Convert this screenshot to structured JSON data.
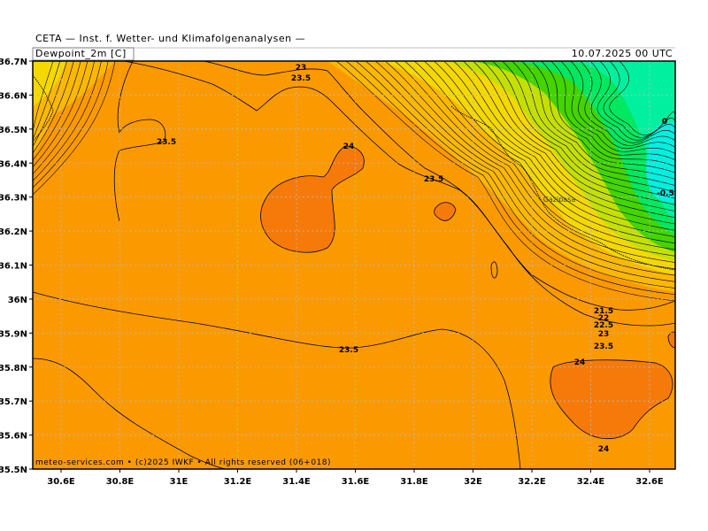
{
  "header": {
    "org": "CETA — Inst. f. Wetter- und Klimafolgenanalysen —",
    "variable": "Dewpoint_2m [C]",
    "datetime": "10.07.2025 00 UTC"
  },
  "footer": {
    "credit": "meteo-services.com • (c)2025 IWKF • All rights reserved (06+018)"
  },
  "axes": {
    "lat_labels": [
      "36.7N",
      "36.6N",
      "36.5N",
      "36.4N",
      "36.3N",
      "36.2N",
      "36.1N",
      "36N",
      "35.9N",
      "35.8N",
      "35.7N",
      "35.6N",
      "35.5N"
    ],
    "lon_labels": [
      "30.6E",
      "30.8E",
      "31E",
      "31.2E",
      "31.4E",
      "31.6E",
      "31.8E",
      "32E",
      "32.2E",
      "32.4E",
      "32.6E"
    ]
  },
  "contour_labels": [
    {
      "text": "23"
    },
    {
      "text": "23.5"
    },
    {
      "text": "23.5"
    },
    {
      "text": "24"
    },
    {
      "text": "23.5"
    },
    {
      "text": "23.5"
    },
    {
      "text": "0"
    },
    {
      "text": "-0.5"
    },
    {
      "text": "21.5"
    },
    {
      "text": "22"
    },
    {
      "text": "22.5"
    },
    {
      "text": "23"
    },
    {
      "text": "23.5"
    },
    {
      "text": "24"
    },
    {
      "text": "24"
    }
  ],
  "places": [
    {
      "name": "Gazipasa"
    }
  ],
  "colors": {
    "base": "#fb9a00",
    "warm": "#f67a0a",
    "yellow_orange": "#fcb800",
    "yellow": "#f4d800",
    "yellow_green": "#c4e000",
    "green": "#44d400",
    "bright_green": "#00e860",
    "cyan_green": "#00f0a0",
    "cyan": "#00f0e0"
  }
}
